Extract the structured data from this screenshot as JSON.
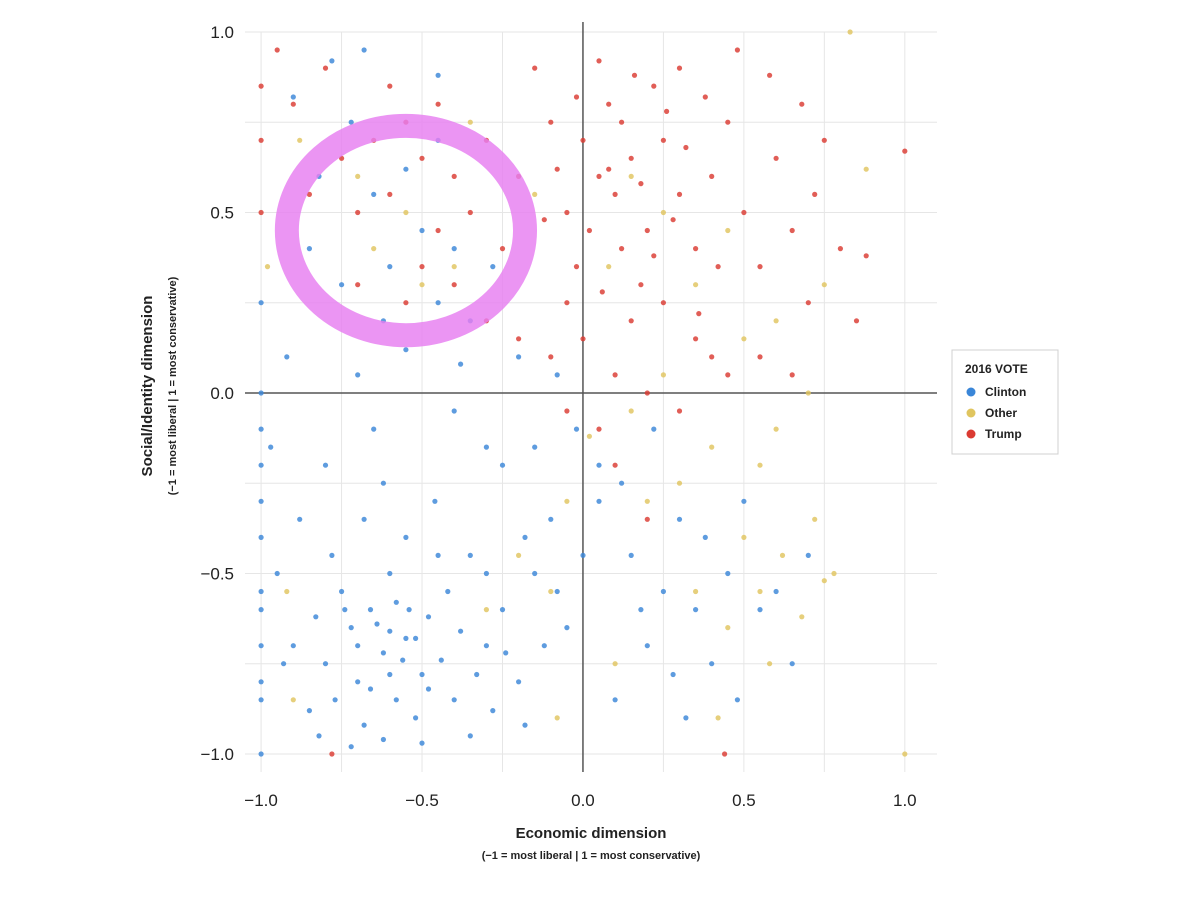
{
  "chart_data": {
    "type": "scatter",
    "title": "",
    "xlabel": "Economic dimension",
    "xlabel_sub": "(−1 = most liberal | 1 = most conservative)",
    "ylabel": "Social/Identity dimension",
    "ylabel_sub": "(−1 = most liberal | 1 = most conservative)",
    "xlim": [
      -1.05,
      1.1
    ],
    "ylim": [
      -1.05,
      1.0
    ],
    "x_ticks": [
      "−1.0",
      "−0.5",
      "0.0",
      "0.5",
      "1.0"
    ],
    "y_ticks": [
      "1.0",
      "0.5",
      "0.0",
      "−0.5",
      "−1.0"
    ],
    "grid": true,
    "legend": {
      "title": "2016 VOTE",
      "position": "right",
      "items": [
        {
          "label": "Clinton",
          "color": "#3a86d8"
        },
        {
          "label": "Other",
          "color": "#e0c55f"
        },
        {
          "label": "Trump",
          "color": "#db3b32"
        }
      ]
    },
    "annotation": {
      "type": "hand-drawn circle",
      "color": "#e77ef0",
      "cx": -0.55,
      "cy": 0.45,
      "rx": 0.37,
      "ry": 0.29
    },
    "series": [
      {
        "name": "Clinton",
        "color": "#3a86d8",
        "points": [
          [
            -0.62,
            -0.72
          ],
          [
            -0.55,
            -0.68
          ],
          [
            -0.7,
            -0.8
          ],
          [
            -0.48,
            -0.62
          ],
          [
            -0.8,
            -0.75
          ],
          [
            -0.58,
            -0.85
          ],
          [
            -0.66,
            -0.6
          ],
          [
            -0.44,
            -0.74
          ],
          [
            -0.75,
            -0.55
          ],
          [
            -0.52,
            -0.9
          ],
          [
            -0.38,
            -0.66
          ],
          [
            -0.85,
            -0.88
          ],
          [
            -0.6,
            -0.5
          ],
          [
            -0.72,
            -0.65
          ],
          [
            -0.5,
            -0.78
          ],
          [
            -0.9,
            -0.7
          ],
          [
            -0.42,
            -0.55
          ],
          [
            -0.3,
            -0.7
          ],
          [
            -0.68,
            -0.92
          ],
          [
            -0.78,
            -0.45
          ],
          [
            -0.55,
            -0.4
          ],
          [
            -0.46,
            -0.3
          ],
          [
            -0.62,
            -0.25
          ],
          [
            -0.35,
            -0.45
          ],
          [
            -0.25,
            -0.6
          ],
          [
            -0.2,
            -0.8
          ],
          [
            -0.15,
            -0.5
          ],
          [
            -0.1,
            -0.35
          ],
          [
            -0.05,
            -0.65
          ],
          [
            -0.3,
            -0.15
          ],
          [
            -0.4,
            -0.05
          ],
          [
            -0.65,
            -0.1
          ],
          [
            -0.8,
            -0.2
          ],
          [
            -0.88,
            -0.35
          ],
          [
            -0.7,
            0.05
          ],
          [
            -0.55,
            0.12
          ],
          [
            -0.45,
            0.25
          ],
          [
            -0.6,
            0.35
          ],
          [
            -0.75,
            0.3
          ],
          [
            -0.5,
            0.45
          ],
          [
            -0.65,
            0.55
          ],
          [
            -0.4,
            0.4
          ],
          [
            -0.35,
            0.2
          ],
          [
            -0.25,
            -0.2
          ],
          [
            -0.2,
            0.1
          ],
          [
            0.05,
            -0.3
          ],
          [
            0.15,
            -0.45
          ],
          [
            0.25,
            -0.55
          ],
          [
            0.2,
            -0.7
          ],
          [
            0.35,
            -0.6
          ],
          [
            0.3,
            -0.35
          ],
          [
            0.45,
            -0.5
          ],
          [
            0.5,
            -0.3
          ],
          [
            0.55,
            -0.6
          ],
          [
            0.4,
            -0.75
          ],
          [
            0.1,
            -0.85
          ],
          [
            -1.0,
            -0.2
          ],
          [
            -1.0,
            -0.4
          ],
          [
            -1.0,
            -0.55
          ],
          [
            -1.0,
            -0.7
          ],
          [
            -1.0,
            -0.85
          ],
          [
            -1.0,
            -1.0
          ],
          [
            -1.0,
            0.0
          ],
          [
            -1.0,
            0.25
          ],
          [
            -1.0,
            -0.1
          ],
          [
            -1.0,
            -0.3
          ],
          [
            -1.0,
            -0.6
          ],
          [
            -1.0,
            -0.8
          ],
          [
            -0.95,
            -0.5
          ],
          [
            -0.93,
            -0.75
          ],
          [
            -0.97,
            -0.15
          ],
          [
            -0.92,
            0.1
          ],
          [
            -0.82,
            -0.95
          ],
          [
            -0.72,
            -0.98
          ],
          [
            -0.62,
            -0.96
          ],
          [
            -0.5,
            -0.97
          ],
          [
            -0.35,
            -0.95
          ],
          [
            -0.28,
            -0.88
          ],
          [
            -0.18,
            -0.92
          ],
          [
            -0.12,
            -0.7
          ],
          [
            -0.08,
            -0.55
          ],
          [
            0.0,
            -0.45
          ],
          [
            0.05,
            -0.2
          ],
          [
            -0.02,
            -0.1
          ],
          [
            -0.15,
            -0.15
          ],
          [
            -0.3,
            -0.5
          ],
          [
            -0.45,
            -0.45
          ],
          [
            -0.58,
            -0.58
          ],
          [
            -0.68,
            -0.35
          ],
          [
            -0.83,
            -0.62
          ],
          [
            -0.77,
            -0.85
          ],
          [
            -0.6,
            -0.78
          ],
          [
            -0.52,
            -0.68
          ],
          [
            -0.4,
            -0.85
          ],
          [
            -0.33,
            -0.78
          ],
          [
            -0.24,
            -0.72
          ],
          [
            -0.7,
            -0.7
          ],
          [
            -0.64,
            -0.64
          ],
          [
            -0.56,
            -0.74
          ],
          [
            -0.48,
            -0.82
          ],
          [
            -0.74,
            -0.6
          ],
          [
            -0.66,
            -0.82
          ],
          [
            -0.54,
            -0.6
          ],
          [
            -0.6,
            -0.66
          ],
          [
            -0.82,
            0.6
          ],
          [
            -0.72,
            0.75
          ],
          [
            -0.55,
            0.62
          ],
          [
            -0.45,
            0.7
          ],
          [
            -0.62,
            0.2
          ],
          [
            -0.38,
            0.08
          ],
          [
            -0.28,
            0.35
          ],
          [
            -0.85,
            0.4
          ],
          [
            -0.9,
            0.82
          ],
          [
            -0.78,
            0.92
          ],
          [
            -0.68,
            0.95
          ],
          [
            -0.45,
            0.88
          ],
          [
            0.18,
            -0.6
          ],
          [
            0.28,
            -0.78
          ],
          [
            0.6,
            -0.55
          ],
          [
            0.65,
            -0.75
          ],
          [
            0.7,
            -0.45
          ],
          [
            0.12,
            -0.25
          ],
          [
            0.38,
            -0.4
          ],
          [
            0.48,
            -0.85
          ],
          [
            0.32,
            -0.9
          ],
          [
            0.22,
            -0.1
          ],
          [
            -0.08,
            0.05
          ],
          [
            -0.18,
            -0.4
          ]
        ]
      },
      {
        "name": "Other",
        "color": "#e0c55f",
        "points": [
          [
            0.55,
            -0.55
          ],
          [
            0.62,
            -0.45
          ],
          [
            0.72,
            -0.35
          ],
          [
            0.78,
            -0.5
          ],
          [
            0.68,
            -0.62
          ],
          [
            0.5,
            -0.4
          ],
          [
            0.45,
            -0.65
          ],
          [
            0.35,
            -0.55
          ],
          [
            0.3,
            -0.25
          ],
          [
            0.4,
            -0.15
          ],
          [
            0.2,
            -0.3
          ],
          [
            0.15,
            -0.05
          ],
          [
            0.25,
            0.05
          ],
          [
            0.55,
            -0.2
          ],
          [
            0.6,
            -0.1
          ],
          [
            0.7,
            0.0
          ],
          [
            0.5,
            0.15
          ],
          [
            0.35,
            0.3
          ],
          [
            0.45,
            0.45
          ],
          [
            0.25,
            0.5
          ],
          [
            0.15,
            0.6
          ],
          [
            -0.1,
            -0.55
          ],
          [
            -0.2,
            -0.45
          ],
          [
            -0.05,
            -0.3
          ],
          [
            -0.3,
            -0.6
          ],
          [
            -0.4,
            0.35
          ],
          [
            -0.55,
            0.5
          ],
          [
            -0.65,
            0.4
          ],
          [
            -0.5,
            0.3
          ],
          [
            -0.7,
            0.6
          ],
          [
            -0.35,
            0.75
          ],
          [
            -0.15,
            0.55
          ],
          [
            0.83,
            1.0
          ],
          [
            0.88,
            0.62
          ],
          [
            0.75,
            0.3
          ],
          [
            0.6,
            0.2
          ],
          [
            -0.9,
            -0.85
          ],
          [
            -0.92,
            -0.55
          ],
          [
            -0.98,
            0.35
          ],
          [
            -0.88,
            0.7
          ],
          [
            1.0,
            -1.0
          ],
          [
            0.58,
            -0.75
          ],
          [
            0.75,
            -0.52
          ],
          [
            0.42,
            -0.9
          ],
          [
            0.1,
            -0.75
          ],
          [
            -0.08,
            -0.9
          ],
          [
            0.02,
            -0.12
          ],
          [
            0.08,
            0.35
          ]
        ]
      },
      {
        "name": "Trump",
        "color": "#db3b32",
        "points": [
          [
            0.05,
            0.6
          ],
          [
            0.1,
            0.55
          ],
          [
            0.0,
            0.7
          ],
          [
            0.15,
            0.65
          ],
          [
            -0.05,
            0.5
          ],
          [
            0.2,
            0.45
          ],
          [
            0.08,
            0.8
          ],
          [
            -0.1,
            0.75
          ],
          [
            0.25,
            0.7
          ],
          [
            0.3,
            0.55
          ],
          [
            0.12,
            0.4
          ],
          [
            -0.02,
            0.35
          ],
          [
            0.18,
            0.3
          ],
          [
            0.35,
            0.4
          ],
          [
            0.4,
            0.6
          ],
          [
            0.45,
            0.75
          ],
          [
            0.22,
            0.85
          ],
          [
            -0.15,
            0.9
          ],
          [
            0.05,
            0.92
          ],
          [
            0.3,
            0.9
          ],
          [
            0.5,
            0.5
          ],
          [
            0.55,
            0.35
          ],
          [
            0.6,
            0.65
          ],
          [
            0.65,
            0.45
          ],
          [
            0.7,
            0.25
          ],
          [
            0.72,
            0.55
          ],
          [
            0.8,
            0.4
          ],
          [
            0.85,
            0.2
          ],
          [
            0.88,
            0.38
          ],
          [
            1.0,
            0.67
          ],
          [
            0.75,
            0.7
          ],
          [
            0.68,
            0.8
          ],
          [
            0.58,
            0.88
          ],
          [
            0.48,
            0.95
          ],
          [
            -0.2,
            0.6
          ],
          [
            -0.25,
            0.4
          ],
          [
            -0.3,
            0.7
          ],
          [
            -0.35,
            0.5
          ],
          [
            -0.4,
            0.6
          ],
          [
            -0.45,
            0.8
          ],
          [
            -0.5,
            0.65
          ],
          [
            -0.55,
            0.75
          ],
          [
            -0.6,
            0.85
          ],
          [
            -0.65,
            0.7
          ],
          [
            -0.7,
            0.5
          ],
          [
            -0.75,
            0.65
          ],
          [
            -0.8,
            0.9
          ],
          [
            -0.85,
            0.55
          ],
          [
            -0.9,
            0.8
          ],
          [
            -0.95,
            0.95
          ],
          [
            -1.0,
            0.7
          ],
          [
            -1.0,
            0.5
          ],
          [
            -1.0,
            0.85
          ],
          [
            -0.3,
            0.2
          ],
          [
            -0.2,
            0.15
          ],
          [
            -0.1,
            0.1
          ],
          [
            0.0,
            0.15
          ],
          [
            0.1,
            0.05
          ],
          [
            0.2,
            0.0
          ],
          [
            0.3,
            -0.05
          ],
          [
            0.4,
            0.1
          ],
          [
            0.15,
            0.2
          ],
          [
            -0.05,
            0.25
          ],
          [
            0.25,
            0.25
          ],
          [
            0.35,
            0.15
          ],
          [
            0.45,
            0.05
          ],
          [
            0.55,
            0.1
          ],
          [
            0.65,
            0.05
          ],
          [
            0.05,
            -0.1
          ],
          [
            -0.05,
            -0.05
          ],
          [
            0.1,
            -0.2
          ],
          [
            0.2,
            -0.35
          ],
          [
            -0.4,
            0.3
          ],
          [
            -0.5,
            0.35
          ],
          [
            -0.45,
            0.45
          ],
          [
            -0.6,
            0.55
          ],
          [
            -0.7,
            0.3
          ],
          [
            -0.55,
            0.25
          ],
          [
            0.44,
            -1.0
          ],
          [
            -0.78,
            -1.0
          ],
          [
            0.02,
            0.45
          ],
          [
            0.08,
            0.62
          ],
          [
            0.12,
            0.75
          ],
          [
            0.18,
            0.58
          ],
          [
            0.22,
            0.38
          ],
          [
            0.28,
            0.48
          ],
          [
            0.32,
            0.68
          ],
          [
            0.38,
            0.82
          ],
          [
            -0.08,
            0.62
          ],
          [
            -0.12,
            0.48
          ],
          [
            -0.02,
            0.82
          ],
          [
            0.06,
            0.28
          ],
          [
            0.16,
            0.88
          ],
          [
            0.26,
            0.78
          ],
          [
            0.36,
            0.22
          ],
          [
            0.42,
            0.35
          ]
        ]
      }
    ]
  }
}
